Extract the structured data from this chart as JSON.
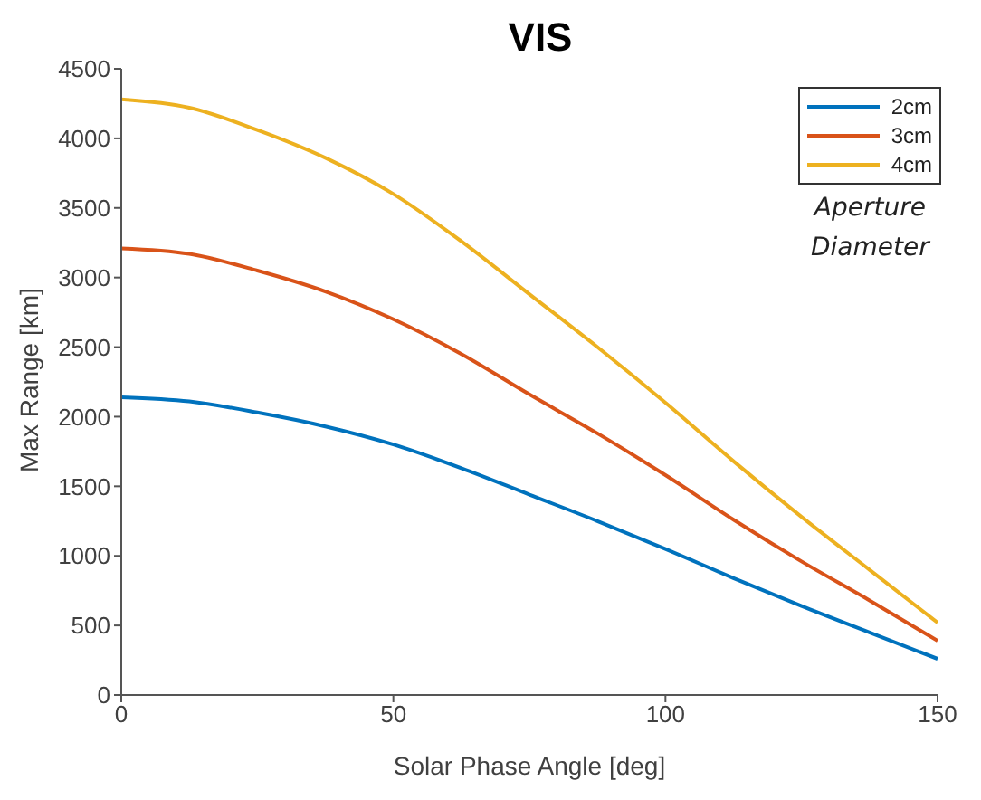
{
  "chart_data": {
    "type": "line",
    "title": "VIS",
    "xlabel": "Solar Phase Angle [deg]",
    "ylabel": "Max Range [km]",
    "legend_title": "Aperture Diameter",
    "x": [
      0,
      12.5,
      25,
      37.5,
      50,
      62.5,
      75,
      87.5,
      100,
      112.5,
      125,
      137.5,
      150
    ],
    "series": [
      {
        "name": "2cm",
        "color": "#0072bd",
        "values": [
          2140,
          2110,
          2030,
          1930,
          1800,
          1630,
          1440,
          1250,
          1050,
          840,
          640,
          450,
          260
        ]
      },
      {
        "name": "3cm",
        "color": "#d95319",
        "values": [
          3210,
          3170,
          3050,
          2900,
          2700,
          2450,
          2160,
          1880,
          1580,
          1260,
          960,
          680,
          390
        ]
      },
      {
        "name": "4cm",
        "color": "#edb120",
        "values": [
          4280,
          4220,
          4060,
          3860,
          3600,
          3260,
          2880,
          2500,
          2100,
          1680,
          1280,
          900,
          520
        ]
      }
    ],
    "xlim": [
      0,
      150
    ],
    "xticks": [
      0,
      50,
      100,
      150
    ],
    "ylim": [
      0,
      4500
    ],
    "yticks": [
      0,
      500,
      1000,
      1500,
      2000,
      2500,
      3000,
      3500,
      4000,
      4500
    ],
    "grid": false,
    "legend": "top right",
    "marker": "none",
    "line_style": "solid"
  }
}
